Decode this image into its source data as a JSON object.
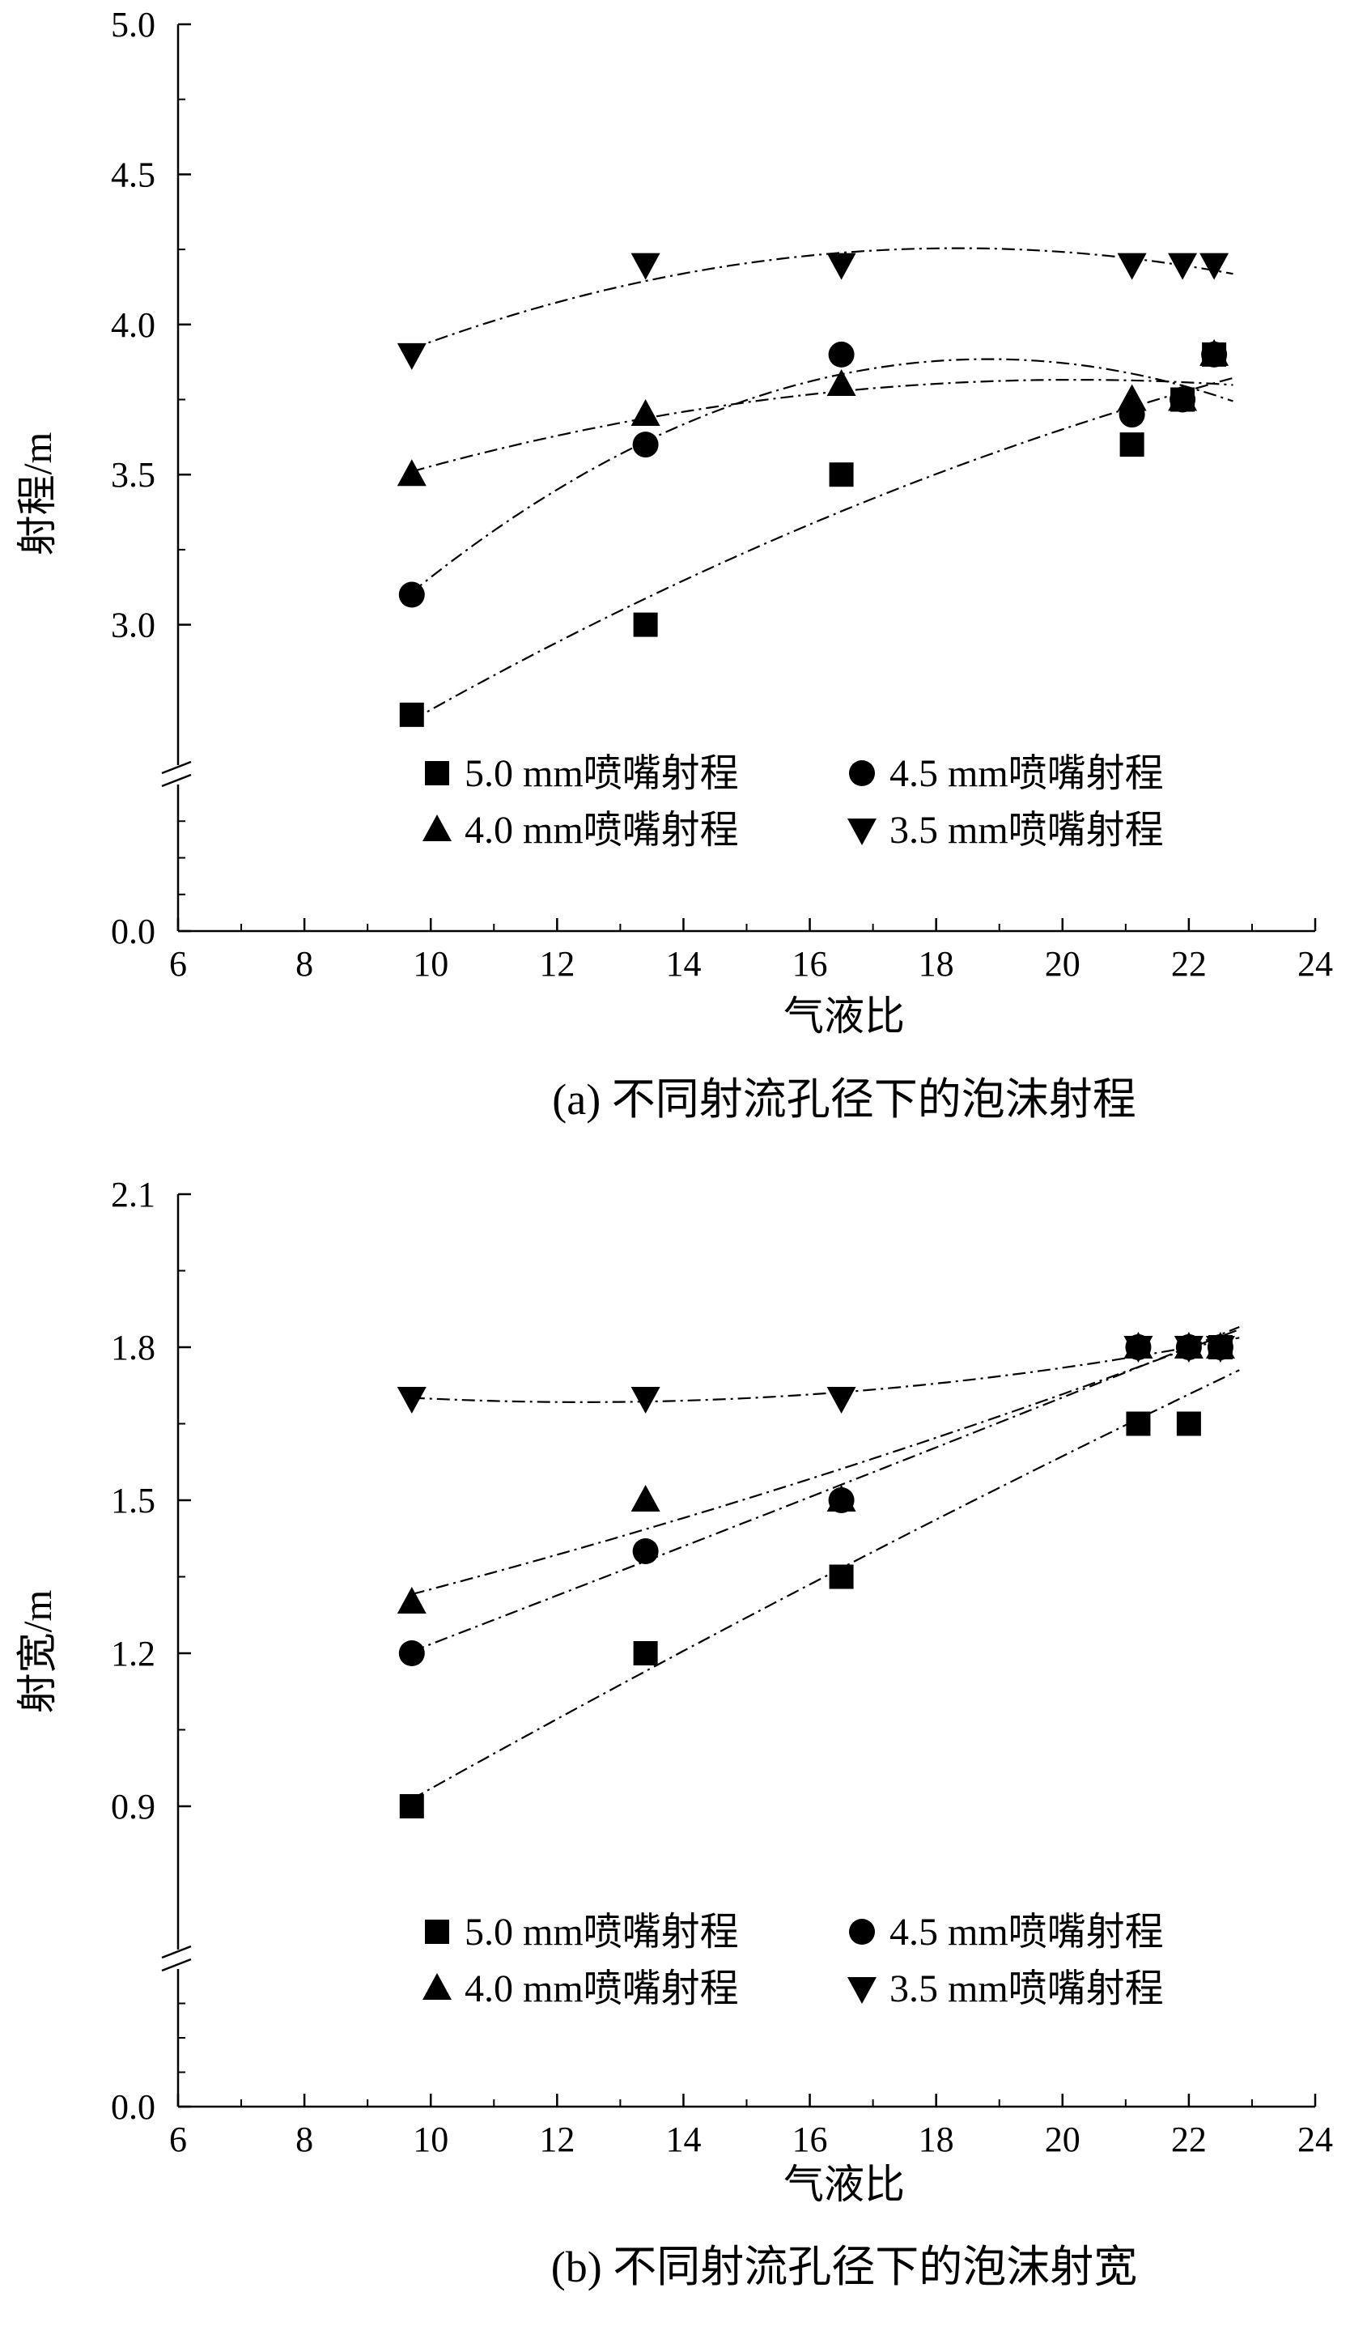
{
  "chart_data": [
    {
      "type": "scatter",
      "panel_caption": "(a) 不同射流孔径下的泡沫射程",
      "xlabel": "气液比",
      "ylabel": "射程/m",
      "xlim": [
        6,
        24
      ],
      "xticks": [
        6,
        8,
        10,
        12,
        14,
        16,
        18,
        20,
        22,
        24
      ],
      "xtick_labels": [
        "6",
        "8",
        "10",
        "12",
        "14",
        "16",
        "18",
        "20",
        "22",
        "24"
      ],
      "ylim_break": [
        0.0,
        2.5
      ],
      "yticks": [
        0.0,
        3.0,
        3.5,
        4.0,
        4.5,
        5.0
      ],
      "ytick_labels": [
        "0.0",
        "3.0",
        "3.5",
        "4.0",
        "4.5",
        "5.0"
      ],
      "axis_break": true,
      "legend": {
        "placement": "bottom-center",
        "columns": 2
      },
      "fit_lines": "dash-dot, quadratic",
      "series": [
        {
          "name": "5.0 mm喷嘴射程",
          "marker": "square",
          "x": [
            9.7,
            13.4,
            16.5,
            21.1,
            21.9,
            22.4
          ],
          "y": [
            2.7,
            3.0,
            3.5,
            3.6,
            3.75,
            3.9
          ]
        },
        {
          "name": "4.5 mm喷嘴射程",
          "marker": "circle",
          "x": [
            9.7,
            13.4,
            16.5,
            21.1,
            21.9,
            22.4
          ],
          "y": [
            3.1,
            3.6,
            3.9,
            3.7,
            3.75,
            3.9
          ]
        },
        {
          "name": "4.0 mm喷嘴射程",
          "marker": "triangle-up",
          "x": [
            9.7,
            13.4,
            16.5,
            21.1,
            21.9,
            22.4
          ],
          "y": [
            3.5,
            3.7,
            3.8,
            3.75,
            3.75,
            3.9
          ]
        },
        {
          "name": "3.5 mm喷嘴射程",
          "marker": "triangle-down",
          "x": [
            9.7,
            13.4,
            16.5,
            21.1,
            21.9,
            22.4
          ],
          "y": [
            3.9,
            4.2,
            4.2,
            4.2,
            4.2,
            4.2
          ]
        }
      ]
    },
    {
      "type": "scatter",
      "panel_caption": "(b) 不同射流孔径下的泡沫射宽",
      "xlabel": "气液比",
      "ylabel": "射宽/m",
      "xlim": [
        6,
        24
      ],
      "xticks": [
        6,
        8,
        10,
        12,
        14,
        16,
        18,
        20,
        22,
        24
      ],
      "xtick_labels": [
        "6",
        "8",
        "10",
        "12",
        "14",
        "16",
        "18",
        "20",
        "22",
        "24"
      ],
      "ylim_break": [
        0.0,
        0.6
      ],
      "yticks": [
        0.0,
        0.9,
        1.2,
        1.5,
        1.8,
        2.1
      ],
      "ytick_labels": [
        "0.0",
        "0.9",
        "1.2",
        "1.5",
        "1.8",
        "2.1"
      ],
      "axis_break": true,
      "legend": {
        "placement": "bottom-center",
        "columns": 2
      },
      "fit_lines": "dash-dot",
      "series": [
        {
          "name": "5.0 mm喷嘴射程",
          "marker": "square",
          "x": [
            9.7,
            13.4,
            16.5,
            21.2,
            22.0,
            22.5
          ],
          "y": [
            0.9,
            1.2,
            1.35,
            1.65,
            1.65,
            1.8
          ]
        },
        {
          "name": "4.5 mm喷嘴射程",
          "marker": "circle",
          "x": [
            9.7,
            13.4,
            16.5,
            21.2,
            22.0,
            22.5
          ],
          "y": [
            1.2,
            1.4,
            1.5,
            1.8,
            1.8,
            1.8
          ]
        },
        {
          "name": "4.0 mm喷嘴射程",
          "marker": "triangle-up",
          "x": [
            9.7,
            13.4,
            16.5,
            21.2,
            22.0,
            22.5
          ],
          "y": [
            1.3,
            1.5,
            1.5,
            1.8,
            1.8,
            1.8
          ]
        },
        {
          "name": "3.5 mm喷嘴射程",
          "marker": "triangle-down",
          "x": [
            9.7,
            13.4,
            16.5,
            21.2,
            22.0,
            22.5
          ],
          "y": [
            1.7,
            1.7,
            1.7,
            1.8,
            1.8,
            1.8
          ]
        }
      ]
    }
  ]
}
